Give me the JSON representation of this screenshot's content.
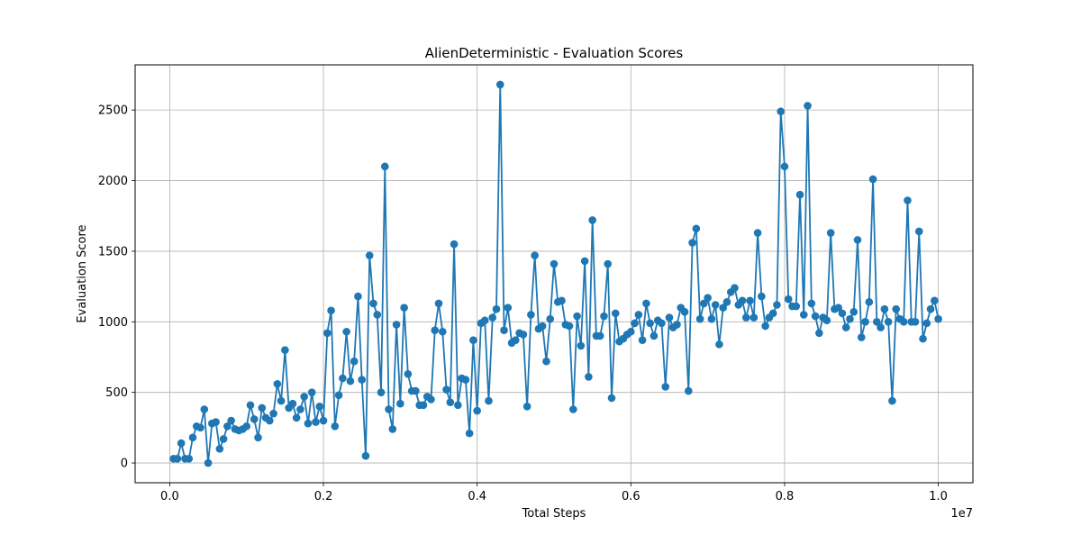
{
  "chart_data": {
    "type": "line",
    "title": "AlienDeterministic - Evaluation Scores",
    "xlabel": "Total Steps",
    "ylabel": "Evaluation Score",
    "x_scale_label": "1e7",
    "xlim": [
      -0.045,
      1.045
    ],
    "ylim": [
      -140,
      2820
    ],
    "x_ticks": [
      0.0,
      0.2,
      0.4,
      0.6,
      0.8,
      1.0
    ],
    "x_tick_labels": [
      "0.0",
      "0.2",
      "0.4",
      "0.6",
      "0.8",
      "1.0"
    ],
    "y_ticks": [
      0,
      500,
      1000,
      1500,
      2000,
      2500
    ],
    "y_tick_labels": [
      "0",
      "500",
      "1000",
      "1500",
      "2000",
      "2500"
    ],
    "grid": true,
    "line_color": "#1f77b4",
    "series": [
      {
        "x_step": 0.005,
        "x_start": 0.005,
        "values": [
          30,
          30,
          140,
          30,
          30,
          180,
          260,
          250,
          380,
          0,
          280,
          290,
          100,
          170,
          260,
          300,
          240,
          230,
          240,
          260,
          410,
          310,
          180,
          390,
          320,
          300,
          350,
          560,
          440,
          800,
          390,
          420,
          320,
          380,
          470,
          280,
          500,
          290,
          400,
          300,
          920,
          1080,
          260,
          480,
          600,
          930,
          580,
          720,
          1180,
          590,
          50,
          1470,
          1130,
          1050,
          500,
          2100,
          380,
          240,
          980,
          420,
          1100,
          630,
          510,
          510,
          410,
          410,
          470,
          450,
          940,
          1130,
          930,
          520,
          430,
          1550,
          410,
          600,
          590,
          210,
          870,
          370,
          990,
          1010,
          440,
          1030,
          1090,
          2680,
          940,
          1100,
          850,
          870,
          920,
          910,
          400,
          1050,
          1470,
          950,
          970,
          720,
          1020,
          1410,
          1140,
          1150,
          980,
          970,
          380,
          1040,
          830,
          1430,
          610,
          1720,
          900,
          900,
          1040,
          1410,
          460,
          1060,
          860,
          880,
          910,
          930,
          990,
          1050,
          870,
          1130,
          990,
          900,
          1010,
          990,
          540,
          1030,
          960,
          980,
          1100,
          1070,
          510,
          1560,
          1660,
          1020,
          1130,
          1170,
          1020,
          1120,
          840,
          1100,
          1140,
          1210,
          1240,
          1120,
          1150,
          1030,
          1150,
          1030,
          1630,
          1180,
          970,
          1030,
          1060,
          1120,
          2490,
          2100,
          1160,
          1110,
          1110,
          1900,
          1050,
          2530,
          1130,
          1040,
          920,
          1030,
          1010,
          1630,
          1090,
          1100,
          1060,
          960,
          1020,
          1070,
          1580,
          890,
          1000,
          1140,
          2010,
          1000,
          960,
          1090,
          1000,
          440,
          1090,
          1020,
          1000,
          1860,
          1000,
          1000,
          1640,
          880,
          990,
          1090,
          1150,
          1020
        ]
      }
    ]
  }
}
